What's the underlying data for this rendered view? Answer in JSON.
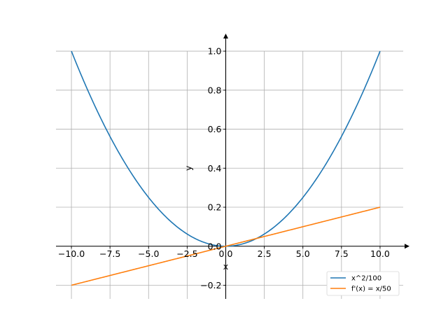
{
  "chart_data": {
    "type": "line",
    "title": "",
    "xlabel": "x",
    "ylabel": "y",
    "xlim": [
      -11,
      11.5
    ],
    "ylim": [
      -0.27,
      1.09
    ],
    "grid": true,
    "x_ticks": [
      -10,
      -7.5,
      -5,
      -2.5,
      0,
      2.5,
      5,
      7.5,
      10
    ],
    "x_tick_labels": [
      "−10.0",
      "−7.5",
      "−5.0",
      "−2.5",
      "0.0",
      "2.5",
      "5.0",
      "7.5",
      "10.0"
    ],
    "y_ticks": [
      -0.2,
      0,
      0.2,
      0.4,
      0.6,
      0.8,
      1.0
    ],
    "y_tick_labels": [
      "−0.2",
      "0.0",
      "0.2",
      "0.4",
      "0.6",
      "0.8",
      "1.0"
    ],
    "legend_position": "lower-right",
    "series": [
      {
        "name": "x^2/100",
        "color": "#1f77b4",
        "function": "x^2/100",
        "x": [
          -10,
          -8,
          -6,
          -4,
          -2,
          0,
          2,
          4,
          6,
          8,
          10
        ],
        "y": [
          1.0,
          0.64,
          0.36,
          0.16,
          0.04,
          0.0,
          0.04,
          0.16,
          0.36,
          0.64,
          1.0
        ]
      },
      {
        "name": "f'(x) = x/50",
        "color": "#ff7f0e",
        "function": "x/50",
        "x": [
          -10,
          -5,
          0,
          5,
          10
        ],
        "y": [
          -0.2,
          -0.1,
          0.0,
          0.1,
          0.2
        ]
      }
    ]
  }
}
